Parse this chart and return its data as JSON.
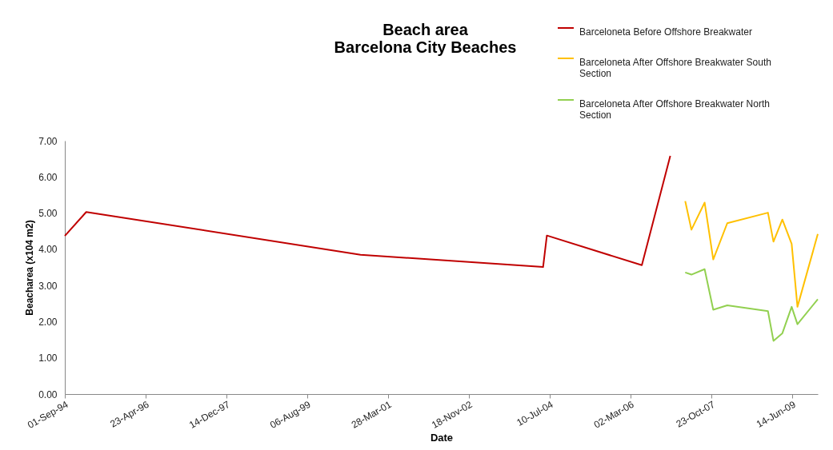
{
  "chart_data": {
    "type": "line",
    "title": "Beach area\nBarcelona City Beaches",
    "xlabel": "Date",
    "ylabel": "Beacharea  (x104 m2)",
    "xlim": [
      "1994-09-01",
      "2009-12-20"
    ],
    "xticks": [
      {
        "value": "1994-09-01",
        "label": "01-Sep-94"
      },
      {
        "value": "1996-04-23",
        "label": "23-Apr-96"
      },
      {
        "value": "1997-12-14",
        "label": "14-Dec-97"
      },
      {
        "value": "1999-08-06",
        "label": "06-Aug-99"
      },
      {
        "value": "2001-03-28",
        "label": "28-Mar-01"
      },
      {
        "value": "2002-11-18",
        "label": "18-Nov-02"
      },
      {
        "value": "2004-07-10",
        "label": "10-Jul-04"
      },
      {
        "value": "2006-03-02",
        "label": "02-Mar-06"
      },
      {
        "value": "2007-10-23",
        "label": "23-Oct-07"
      },
      {
        "value": "2009-06-14",
        "label": "14-Jun-09"
      }
    ],
    "ylim": [
      0,
      7
    ],
    "yticks": [
      {
        "value": 0,
        "label": "0.00"
      },
      {
        "value": 1,
        "label": "1.00"
      },
      {
        "value": 2,
        "label": "2.00"
      },
      {
        "value": 3,
        "label": "3.00"
      },
      {
        "value": 4,
        "label": "4.00"
      },
      {
        "value": 5,
        "label": "5.00"
      },
      {
        "value": 6,
        "label": "6.00"
      },
      {
        "value": 7,
        "label": "7.00"
      }
    ],
    "grid": false,
    "legend": "top right",
    "marker": "none",
    "line_style": "solid",
    "series": [
      {
        "name": "Barceloneta Before Offshore Breakwater",
        "color": "#c00000",
        "x": [
          "1994-09-01",
          "1995-02-07",
          "2000-09-04",
          "2004-05-21",
          "2004-06-18",
          "2006-05-24",
          "2006-12-21"
        ],
        "values": [
          4.37,
          5.03,
          3.85,
          3.51,
          4.38,
          3.56,
          6.58
        ]
      },
      {
        "name": "Barceloneta After  Offshore Breakwater South Section",
        "color": "#ffc000",
        "x": [
          "2007-04-11",
          "2007-05-27",
          "2007-09-02",
          "2007-11-05",
          "2008-02-17",
          "2008-12-15",
          "2009-01-25",
          "2009-04-01",
          "2009-06-09",
          "2009-07-22",
          "2009-12-20"
        ],
        "values": [
          5.33,
          4.54,
          5.29,
          3.72,
          4.72,
          5.01,
          4.21,
          4.82,
          4.15,
          2.41,
          4.42
        ]
      },
      {
        "name": "Barceloneta After  Offshore Breakwater North Section",
        "color": "#92d050",
        "x": [
          "2007-04-11",
          "2007-05-27",
          "2007-09-02",
          "2007-11-05",
          "2008-02-17",
          "2008-12-15",
          "2009-01-25",
          "2009-04-01",
          "2009-06-09",
          "2009-07-22",
          "2009-12-20"
        ],
        "values": [
          3.36,
          3.3,
          3.45,
          2.33,
          2.45,
          2.29,
          1.47,
          1.68,
          2.41,
          1.93,
          2.62
        ]
      }
    ]
  }
}
